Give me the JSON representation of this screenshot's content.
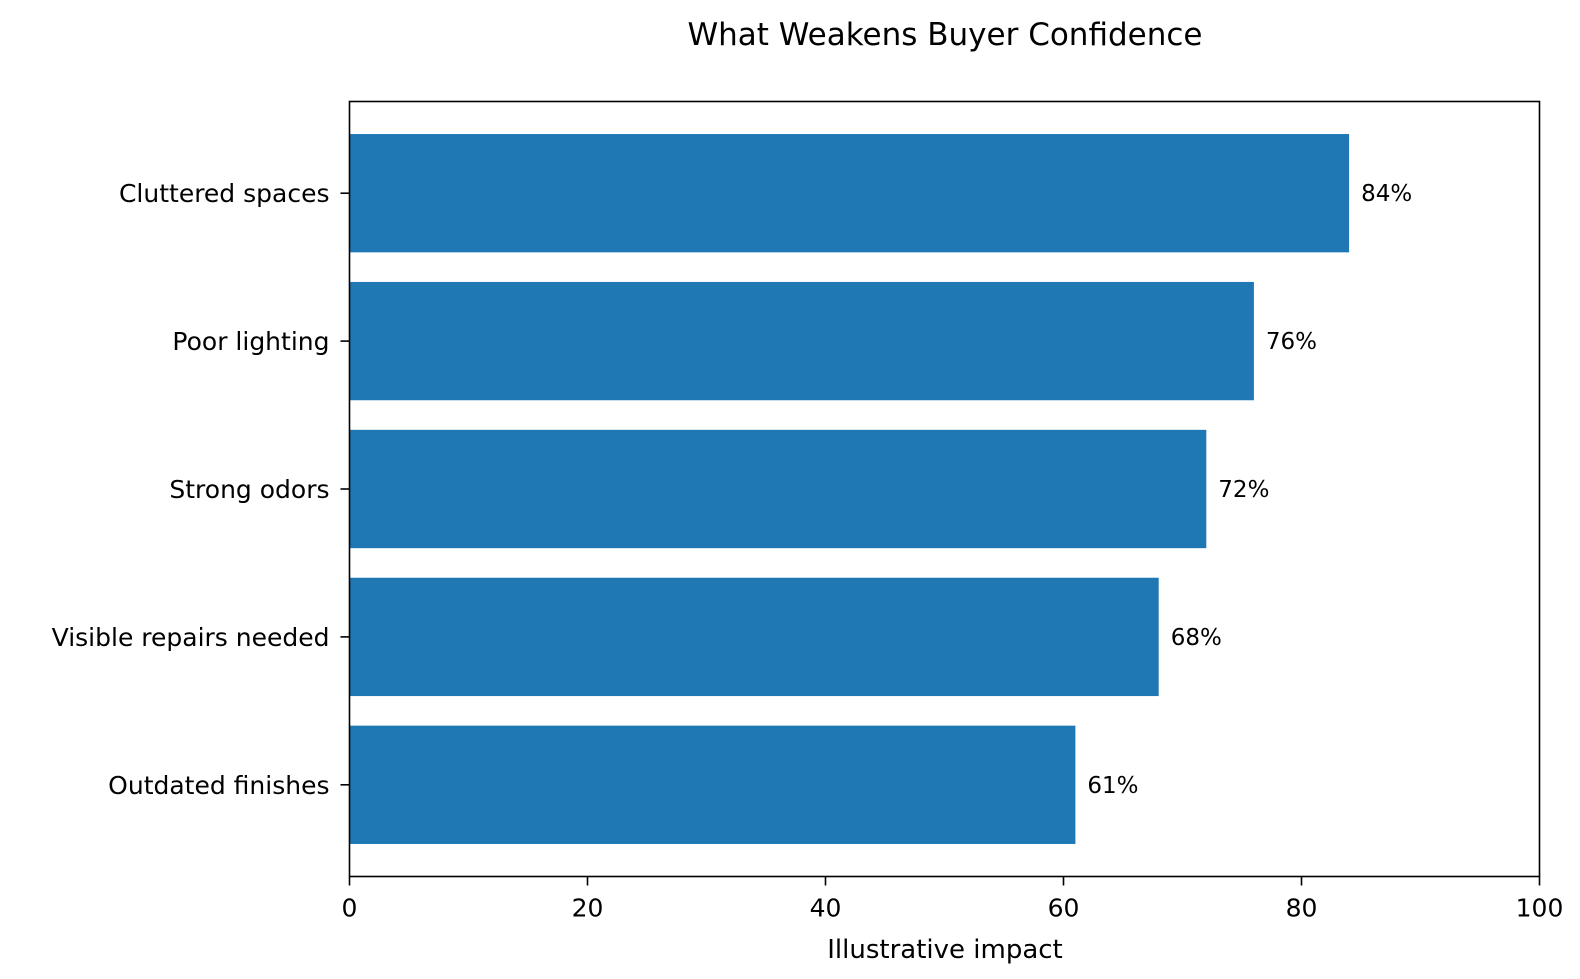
{
  "chart_data": {
    "type": "bar",
    "orientation": "horizontal",
    "title": "What Weakens Buyer Confidence",
    "xlabel": "Illustrative impact",
    "ylabel": "",
    "categories": [
      "Cluttered spaces",
      "Poor lighting",
      "Strong odors",
      "Visible repairs needed",
      "Outdated finishes"
    ],
    "values": [
      84,
      76,
      72,
      68,
      61
    ],
    "data_labels": [
      "84%",
      "76%",
      "72%",
      "68%",
      "61%"
    ],
    "xlim": [
      0,
      100
    ],
    "xticks": [
      0,
      20,
      40,
      60,
      80,
      100
    ],
    "xtick_labels": [
      "0",
      "20",
      "40",
      "60",
      "80",
      "100"
    ],
    "grid": false,
    "legend": "none",
    "bar_color": "#1f77b4"
  }
}
